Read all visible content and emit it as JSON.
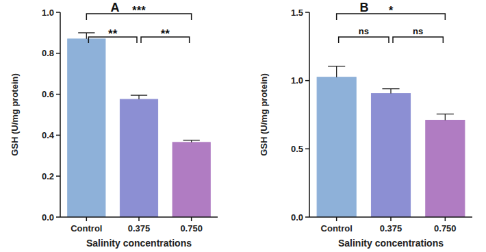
{
  "chart_data": [
    {
      "type": "bar",
      "title": "A",
      "x_label": "Salinity concentrations",
      "y_label": "GSH (U/mg protein)",
      "categories": [
        "Control",
        "0.375",
        "0.750"
      ],
      "values": [
        0.87,
        0.575,
        0.365
      ],
      "errors": [
        0.03,
        0.02,
        0.01
      ],
      "colors": [
        "#8eb1d9",
        "#8c8fd3",
        "#b07cc2"
      ],
      "ylim": [
        0,
        1
      ],
      "yticks": [
        {
          "value": 0,
          "label": "0.0"
        },
        0.2,
        0.4,
        0.6,
        0.8,
        {
          "value": 1,
          "label": "1.0"
        }
      ],
      "grid": false,
      "comparisons": [
        {
          "groups": [
            "Control",
            "0.750"
          ],
          "label": "***"
        },
        {
          "groups": [
            "Control",
            "0.375"
          ],
          "label": "**"
        },
        {
          "groups": [
            "0.375",
            "0.750"
          ],
          "label": "**"
        }
      ]
    },
    {
      "type": "bar",
      "title": "B",
      "x_label": "Salinity concentrations",
      "y_label": "GSH (U/mg protein)",
      "categories": [
        "Control",
        "0.375",
        "0.750"
      ],
      "values": [
        1.025,
        0.905,
        0.71
      ],
      "errors": [
        0.08,
        0.035,
        0.045
      ],
      "colors": [
        "#8eb1d9",
        "#8c8fd3",
        "#b07cc2"
      ],
      "ylim": [
        0,
        1.5
      ],
      "yticks": [
        {
          "value": 0,
          "label": "0.0"
        },
        0.5,
        {
          "value": 1,
          "label": "1.0"
        },
        1.5
      ],
      "grid": false,
      "comparisons": [
        {
          "groups": [
            "Control",
            "0.750"
          ],
          "label": "*"
        },
        {
          "groups": [
            "Control",
            "0.375"
          ],
          "label": "ns"
        },
        {
          "groups": [
            "0.375",
            "0.750"
          ],
          "label": "ns"
        }
      ]
    }
  ]
}
